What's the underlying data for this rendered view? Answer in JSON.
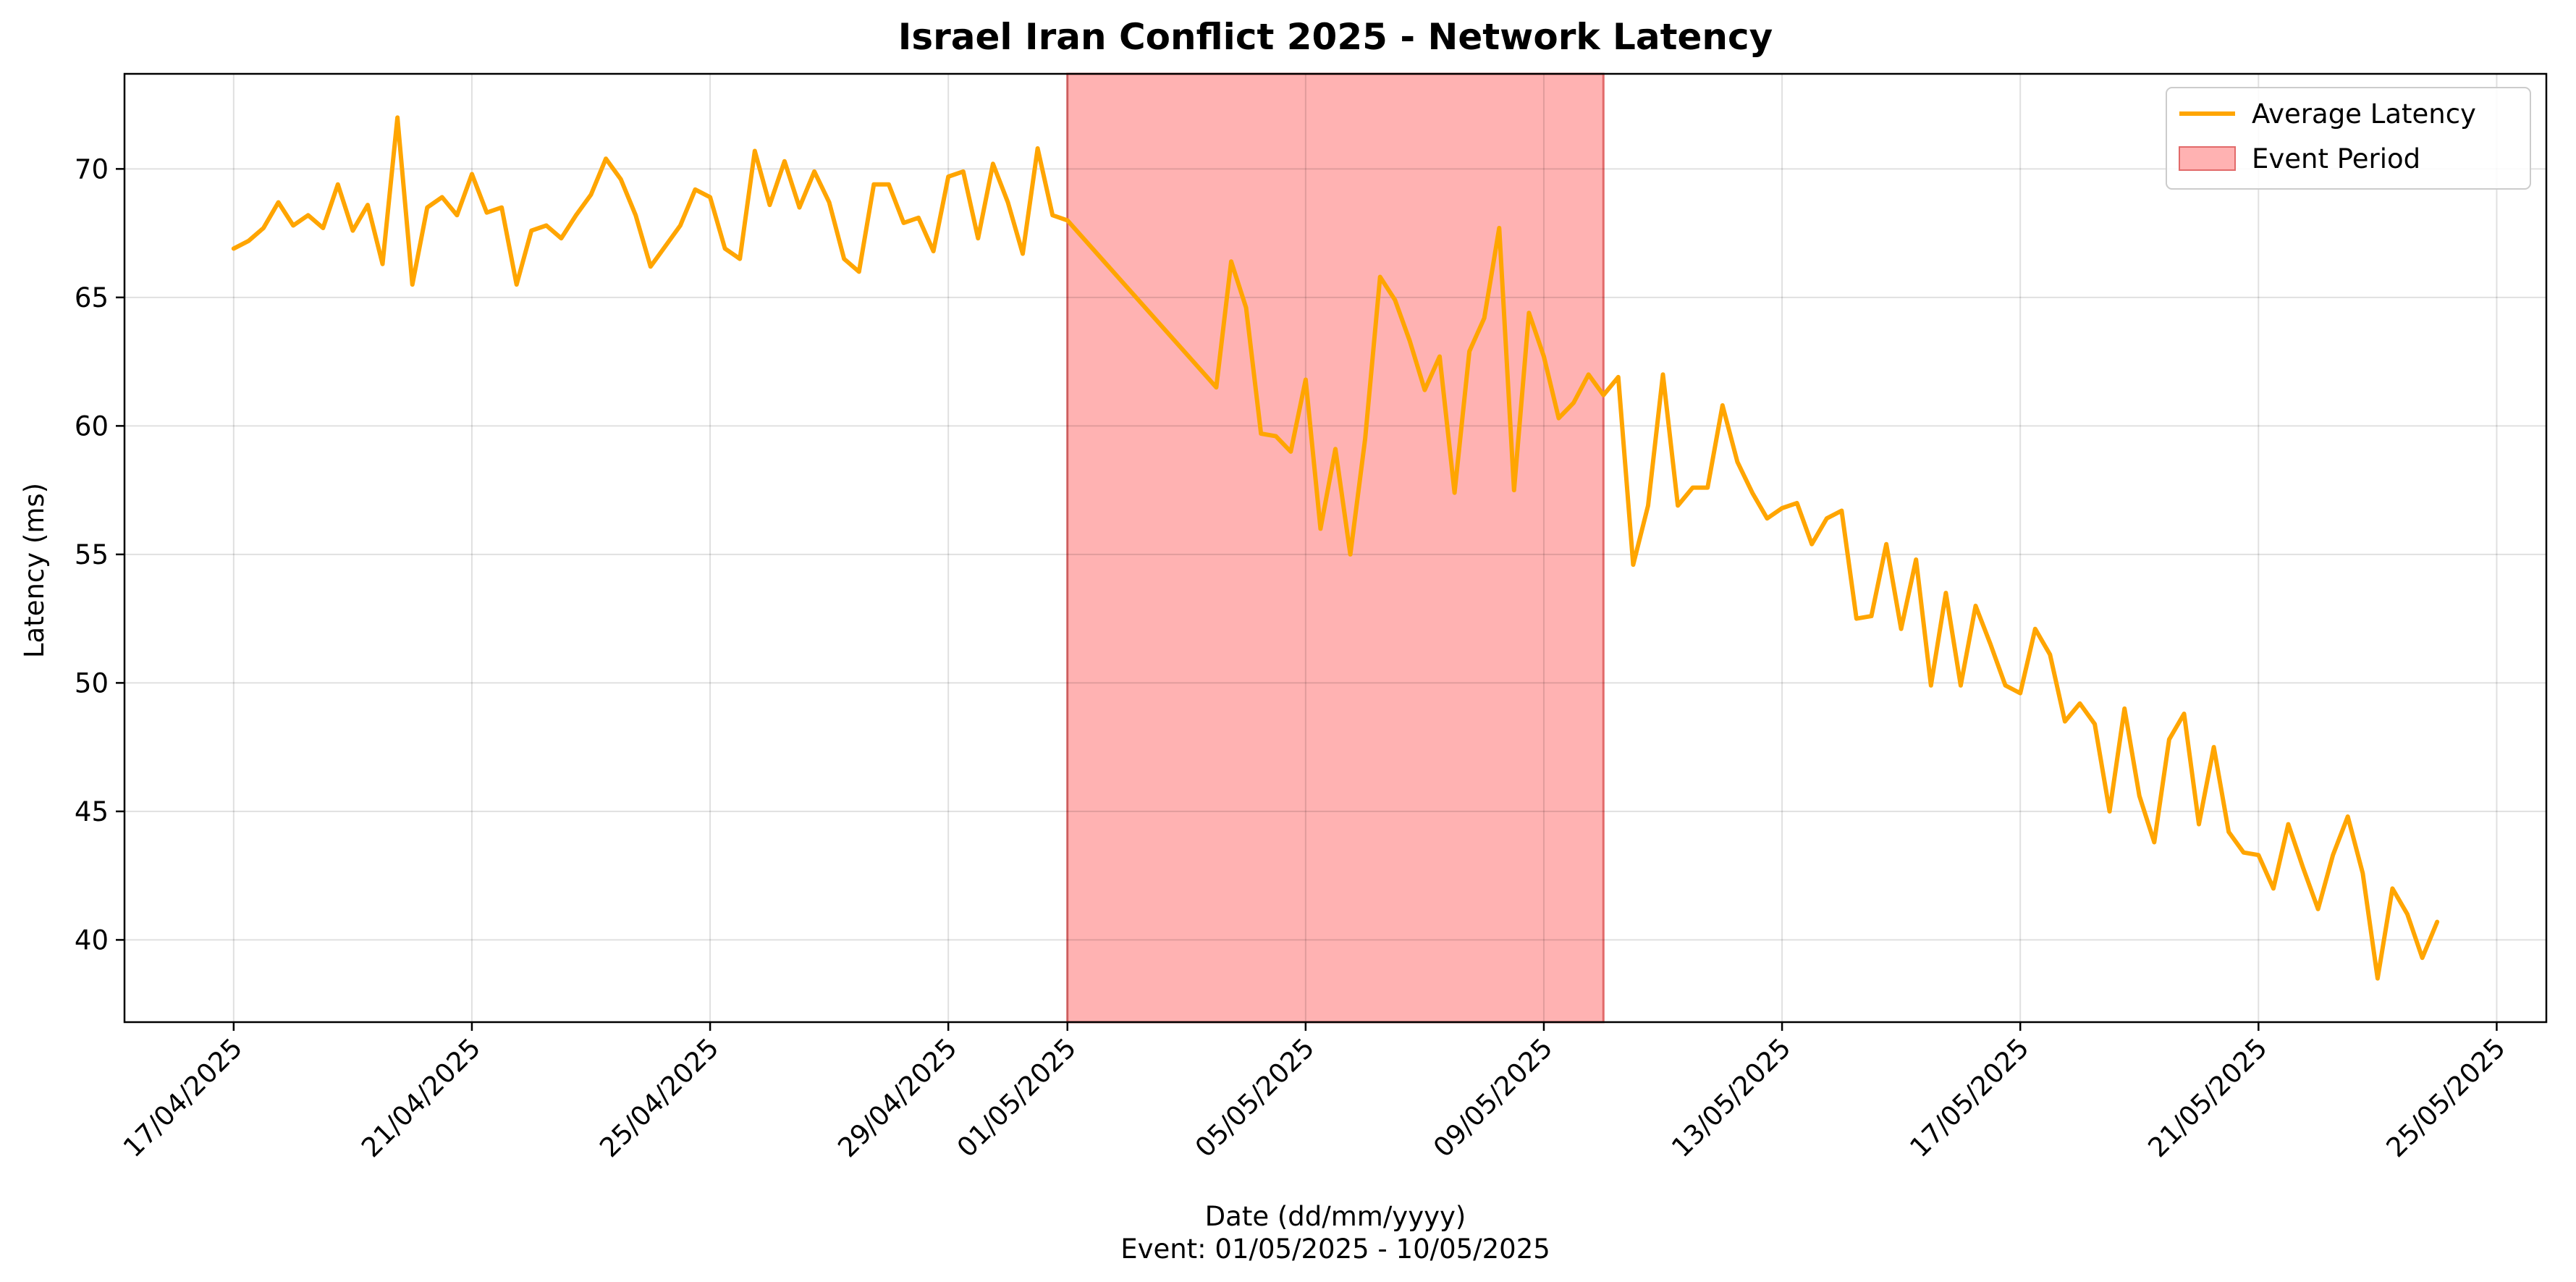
{
  "chart_data": {
    "type": "line",
    "title": "Israel Iran Conflict 2025 - Network Latency",
    "xlabel": "Date (dd/mm/yyyy)",
    "xlabel_sub": "Event: 01/05/2025 - 10/05/2025",
    "ylabel": "Latency (ms)",
    "x_tick_labels": [
      "17/04/2025",
      "21/04/2025",
      "25/04/2025",
      "29/04/2025",
      "01/05/2025",
      "05/05/2025",
      "09/05/2025",
      "13/05/2025",
      "17/05/2025",
      "21/05/2025",
      "25/05/2025"
    ],
    "y_ticks": [
      40,
      45,
      50,
      55,
      60,
      65,
      70
    ],
    "ylim": [
      36.8,
      73.7
    ],
    "xlim": [
      "2025-04-15 04:00",
      "2025-05-25 20:00"
    ],
    "grid": true,
    "legend_position": "top-right",
    "event_period": {
      "name": "Event Period",
      "start": "2025-05-01",
      "end": "2025-05-10",
      "color": "#ff7f7f"
    },
    "series": [
      {
        "name": "Average Latency",
        "color": "#ffa500",
        "points": [
          [
            "2025-04-17 00:00",
            66.9
          ],
          [
            "2025-04-17 06:00",
            67.2
          ],
          [
            "2025-04-17 12:00",
            67.7
          ],
          [
            "2025-04-17 18:00",
            68.7
          ],
          [
            "2025-04-18 00:00",
            67.8
          ],
          [
            "2025-04-18 06:00",
            68.2
          ],
          [
            "2025-04-18 12:00",
            67.7
          ],
          [
            "2025-04-18 18:00",
            69.4
          ],
          [
            "2025-04-19 00:00",
            67.6
          ],
          [
            "2025-04-19 06:00",
            68.6
          ],
          [
            "2025-04-19 12:00",
            66.3
          ],
          [
            "2025-04-19 18:00",
            72.0
          ],
          [
            "2025-04-20 00:00",
            65.5
          ],
          [
            "2025-04-20 06:00",
            68.5
          ],
          [
            "2025-04-20 12:00",
            68.9
          ],
          [
            "2025-04-20 18:00",
            68.2
          ],
          [
            "2025-04-21 00:00",
            69.8
          ],
          [
            "2025-04-21 06:00",
            68.3
          ],
          [
            "2025-04-21 12:00",
            68.5
          ],
          [
            "2025-04-21 18:00",
            65.5
          ],
          [
            "2025-04-22 00:00",
            67.6
          ],
          [
            "2025-04-22 06:00",
            67.8
          ],
          [
            "2025-04-22 12:00",
            67.3
          ],
          [
            "2025-04-22 18:00",
            68.2
          ],
          [
            "2025-04-23 00:00",
            69.0
          ],
          [
            "2025-04-23 06:00",
            70.4
          ],
          [
            "2025-04-23 12:00",
            69.6
          ],
          [
            "2025-04-23 18:00",
            68.2
          ],
          [
            "2025-04-24 00:00",
            66.2
          ],
          [
            "2025-04-24 06:00",
            67.0
          ],
          [
            "2025-04-24 12:00",
            67.8
          ],
          [
            "2025-04-24 18:00",
            69.2
          ],
          [
            "2025-04-25 00:00",
            68.9
          ],
          [
            "2025-04-25 06:00",
            66.9
          ],
          [
            "2025-04-25 12:00",
            66.5
          ],
          [
            "2025-04-25 18:00",
            70.7
          ],
          [
            "2025-04-26 00:00",
            68.6
          ],
          [
            "2025-04-26 06:00",
            70.3
          ],
          [
            "2025-04-26 12:00",
            68.5
          ],
          [
            "2025-04-26 18:00",
            69.9
          ],
          [
            "2025-04-27 00:00",
            68.7
          ],
          [
            "2025-04-27 06:00",
            66.5
          ],
          [
            "2025-04-27 12:00",
            66.0
          ],
          [
            "2025-04-27 18:00",
            69.4
          ],
          [
            "2025-04-28 00:00",
            69.4
          ],
          [
            "2025-04-28 06:00",
            67.9
          ],
          [
            "2025-04-28 12:00",
            68.1
          ],
          [
            "2025-04-28 18:00",
            66.8
          ],
          [
            "2025-04-29 00:00",
            69.7
          ],
          [
            "2025-04-29 06:00",
            69.9
          ],
          [
            "2025-04-29 12:00",
            67.3
          ],
          [
            "2025-04-29 18:00",
            70.2
          ],
          [
            "2025-04-30 00:00",
            68.7
          ],
          [
            "2025-04-30 06:00",
            66.7
          ],
          [
            "2025-04-30 12:00",
            70.8
          ],
          [
            "2025-04-30 18:00",
            68.2
          ],
          [
            "2025-05-01 00:00",
            68.0
          ],
          [
            "2025-05-03 12:00",
            61.5
          ],
          [
            "2025-05-03 18:00",
            66.4
          ],
          [
            "2025-05-04 00:00",
            64.6
          ],
          [
            "2025-05-04 06:00",
            59.7
          ],
          [
            "2025-05-04 12:00",
            59.6
          ],
          [
            "2025-05-04 18:00",
            59.0
          ],
          [
            "2025-05-05 00:00",
            61.8
          ],
          [
            "2025-05-05 06:00",
            56.0
          ],
          [
            "2025-05-05 12:00",
            59.1
          ],
          [
            "2025-05-05 18:00",
            55.0
          ],
          [
            "2025-05-06 00:00",
            59.5
          ],
          [
            "2025-05-06 06:00",
            65.8
          ],
          [
            "2025-05-06 12:00",
            64.9
          ],
          [
            "2025-05-06 18:00",
            63.3
          ],
          [
            "2025-05-07 00:00",
            61.4
          ],
          [
            "2025-05-07 06:00",
            62.7
          ],
          [
            "2025-05-07 12:00",
            57.4
          ],
          [
            "2025-05-07 18:00",
            62.9
          ],
          [
            "2025-05-08 00:00",
            64.2
          ],
          [
            "2025-05-08 06:00",
            67.7
          ],
          [
            "2025-05-08 12:00",
            57.5
          ],
          [
            "2025-05-08 18:00",
            64.4
          ],
          [
            "2025-05-09 00:00",
            62.7
          ],
          [
            "2025-05-09 06:00",
            60.3
          ],
          [
            "2025-05-09 12:00",
            60.9
          ],
          [
            "2025-05-09 18:00",
            62.0
          ],
          [
            "2025-05-10 00:00",
            61.2
          ],
          [
            "2025-05-10 06:00",
            61.9
          ],
          [
            "2025-05-10 12:00",
            54.6
          ],
          [
            "2025-05-10 18:00",
            56.9
          ],
          [
            "2025-05-11 00:00",
            62.0
          ],
          [
            "2025-05-11 06:00",
            56.9
          ],
          [
            "2025-05-11 12:00",
            57.6
          ],
          [
            "2025-05-11 18:00",
            57.6
          ],
          [
            "2025-05-12 00:00",
            60.8
          ],
          [
            "2025-05-12 06:00",
            58.6
          ],
          [
            "2025-05-12 12:00",
            57.4
          ],
          [
            "2025-05-12 18:00",
            56.4
          ],
          [
            "2025-05-13 00:00",
            56.8
          ],
          [
            "2025-05-13 06:00",
            57.0
          ],
          [
            "2025-05-13 12:00",
            55.4
          ],
          [
            "2025-05-13 18:00",
            56.4
          ],
          [
            "2025-05-14 00:00",
            56.7
          ],
          [
            "2025-05-14 06:00",
            52.5
          ],
          [
            "2025-05-14 12:00",
            52.6
          ],
          [
            "2025-05-14 18:00",
            55.4
          ],
          [
            "2025-05-15 00:00",
            52.1
          ],
          [
            "2025-05-15 06:00",
            54.8
          ],
          [
            "2025-05-15 12:00",
            49.9
          ],
          [
            "2025-05-15 18:00",
            53.5
          ],
          [
            "2025-05-16 00:00",
            49.9
          ],
          [
            "2025-05-16 06:00",
            53.0
          ],
          [
            "2025-05-16 12:00",
            51.5
          ],
          [
            "2025-05-16 18:00",
            49.9
          ],
          [
            "2025-05-17 00:00",
            49.6
          ],
          [
            "2025-05-17 06:00",
            52.1
          ],
          [
            "2025-05-17 12:00",
            51.1
          ],
          [
            "2025-05-17 18:00",
            48.5
          ],
          [
            "2025-05-18 00:00",
            49.2
          ],
          [
            "2025-05-18 06:00",
            48.4
          ],
          [
            "2025-05-18 12:00",
            45.0
          ],
          [
            "2025-05-18 18:00",
            49.0
          ],
          [
            "2025-05-19 00:00",
            45.6
          ],
          [
            "2025-05-19 06:00",
            43.8
          ],
          [
            "2025-05-19 12:00",
            47.8
          ],
          [
            "2025-05-19 18:00",
            48.8
          ],
          [
            "2025-05-20 00:00",
            44.5
          ],
          [
            "2025-05-20 06:00",
            47.5
          ],
          [
            "2025-05-20 12:00",
            44.2
          ],
          [
            "2025-05-20 18:00",
            43.4
          ],
          [
            "2025-05-21 00:00",
            43.3
          ],
          [
            "2025-05-21 06:00",
            42.0
          ],
          [
            "2025-05-21 12:00",
            44.5
          ],
          [
            "2025-05-21 18:00",
            42.8
          ],
          [
            "2025-05-22 00:00",
            41.2
          ],
          [
            "2025-05-22 06:00",
            43.3
          ],
          [
            "2025-05-22 12:00",
            44.8
          ],
          [
            "2025-05-22 18:00",
            42.6
          ],
          [
            "2025-05-23 00:00",
            38.5
          ],
          [
            "2025-05-23 06:00",
            42.0
          ],
          [
            "2025-05-23 12:00",
            41.0
          ],
          [
            "2025-05-23 18:00",
            39.3
          ],
          [
            "2025-05-24 00:00",
            40.7
          ]
        ]
      }
    ]
  }
}
